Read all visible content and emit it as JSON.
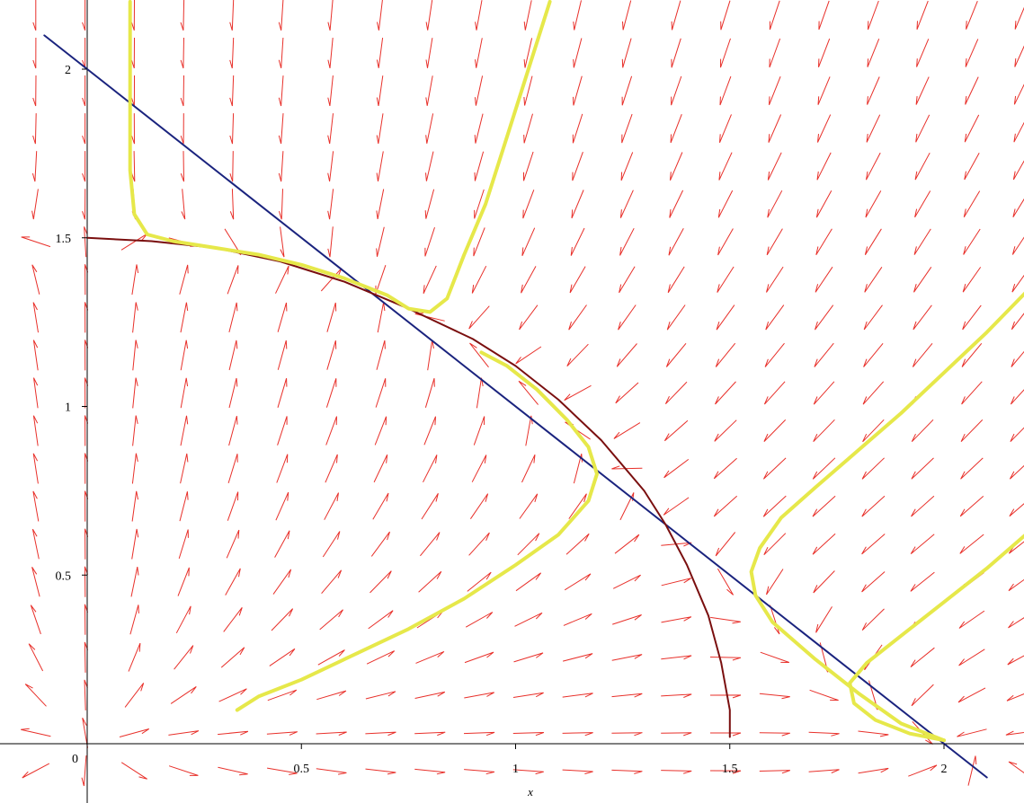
{
  "chart_data": {
    "type": "line",
    "subtype": "phase-portrait",
    "xlabel": "x",
    "ylabel": "",
    "xlim": [
      -0.17,
      2.2
    ],
    "ylim": [
      -0.12,
      2.2
    ],
    "grid": false,
    "x_ticks": [
      {
        "value": 0.5,
        "label": "0.5"
      },
      {
        "value": 1,
        "label": "1"
      },
      {
        "value": 1.5,
        "label": "1.5"
      },
      {
        "value": 2,
        "label": "2"
      }
    ],
    "y_ticks": [
      {
        "value": 0.5,
        "label": "0.5"
      },
      {
        "value": 1,
        "label": "1"
      },
      {
        "value": 1.5,
        "label": "1.5"
      },
      {
        "value": 2,
        "label": "2"
      }
    ],
    "origin_label": "0",
    "colors": {
      "field": "#e8302a",
      "straight_nullcline": "#1a237e",
      "curved_nullcline": "#7a0f0f",
      "trajectory": "#e6e84a"
    },
    "series": [
      {
        "kind": "nullcline",
        "color": "#1a237e",
        "points": [
          [
            -0.1,
            2.1
          ],
          [
            2.1,
            -0.1
          ]
        ]
      },
      {
        "kind": "nullcline",
        "color": "#7a0f0f",
        "points": [
          [
            0,
            1.5
          ],
          [
            0.15,
            1.49
          ],
          [
            0.3,
            1.47
          ],
          [
            0.45,
            1.43
          ],
          [
            0.6,
            1.37
          ],
          [
            0.75,
            1.29
          ],
          [
            0.9,
            1.2
          ],
          [
            1.0,
            1.12
          ],
          [
            1.1,
            1.02
          ],
          [
            1.2,
            0.9
          ],
          [
            1.3,
            0.75
          ],
          [
            1.35,
            0.65
          ],
          [
            1.4,
            0.53
          ],
          [
            1.45,
            0.38
          ],
          [
            1.48,
            0.24
          ],
          [
            1.5,
            0.1
          ],
          [
            1.5,
            0.02
          ]
        ]
      },
      {
        "kind": "trajectory",
        "color": "#e6e84a",
        "points": [
          [
            0.1,
            2.2
          ],
          [
            0.1,
            1.9
          ],
          [
            0.1,
            1.7
          ],
          [
            0.11,
            1.57
          ],
          [
            0.14,
            1.51
          ],
          [
            0.2,
            1.49
          ],
          [
            0.3,
            1.47
          ],
          [
            0.4,
            1.45
          ],
          [
            0.5,
            1.42
          ],
          [
            0.6,
            1.38
          ],
          [
            0.7,
            1.33
          ],
          [
            0.75,
            1.29
          ],
          [
            0.8,
            1.28
          ],
          [
            0.84,
            1.32
          ],
          [
            0.88,
            1.45
          ],
          [
            0.93,
            1.6
          ],
          [
            0.98,
            1.8
          ],
          [
            1.03,
            2.0
          ],
          [
            1.08,
            2.2
          ]
        ]
      },
      {
        "kind": "trajectory",
        "color": "#e6e84a",
        "points": [
          [
            0.92,
            1.16
          ],
          [
            0.98,
            1.12
          ],
          [
            1.05,
            1.05
          ],
          [
            1.12,
            0.96
          ],
          [
            1.17,
            0.88
          ],
          [
            1.19,
            0.8
          ],
          [
            1.17,
            0.72
          ],
          [
            1.1,
            0.62
          ],
          [
            1.0,
            0.53
          ],
          [
            0.88,
            0.43
          ],
          [
            0.75,
            0.34
          ],
          [
            0.6,
            0.25
          ],
          [
            0.5,
            0.19
          ],
          [
            0.4,
            0.14
          ],
          [
            0.35,
            0.1
          ]
        ]
      },
      {
        "kind": "trajectory",
        "color": "#e6e84a",
        "points": [
          [
            2.2,
            1.35
          ],
          [
            2.1,
            1.22
          ],
          [
            2.0,
            1.1
          ],
          [
            1.9,
            0.98
          ],
          [
            1.8,
            0.87
          ],
          [
            1.7,
            0.76
          ],
          [
            1.62,
            0.67
          ],
          [
            1.57,
            0.58
          ],
          [
            1.55,
            0.51
          ],
          [
            1.56,
            0.44
          ],
          [
            1.6,
            0.36
          ],
          [
            1.7,
            0.25
          ],
          [
            1.8,
            0.15
          ],
          [
            1.9,
            0.06
          ],
          [
            2.0,
            0.01
          ]
        ]
      },
      {
        "kind": "trajectory",
        "color": "#e6e84a",
        "points": [
          [
            2.2,
            0.63
          ],
          [
            2.1,
            0.52
          ],
          [
            2.0,
            0.42
          ],
          [
            1.9,
            0.32
          ],
          [
            1.82,
            0.24
          ],
          [
            1.78,
            0.18
          ],
          [
            1.79,
            0.12
          ],
          [
            1.84,
            0.07
          ],
          [
            1.92,
            0.03
          ],
          [
            2.0,
            0.01
          ]
        ]
      }
    ]
  }
}
